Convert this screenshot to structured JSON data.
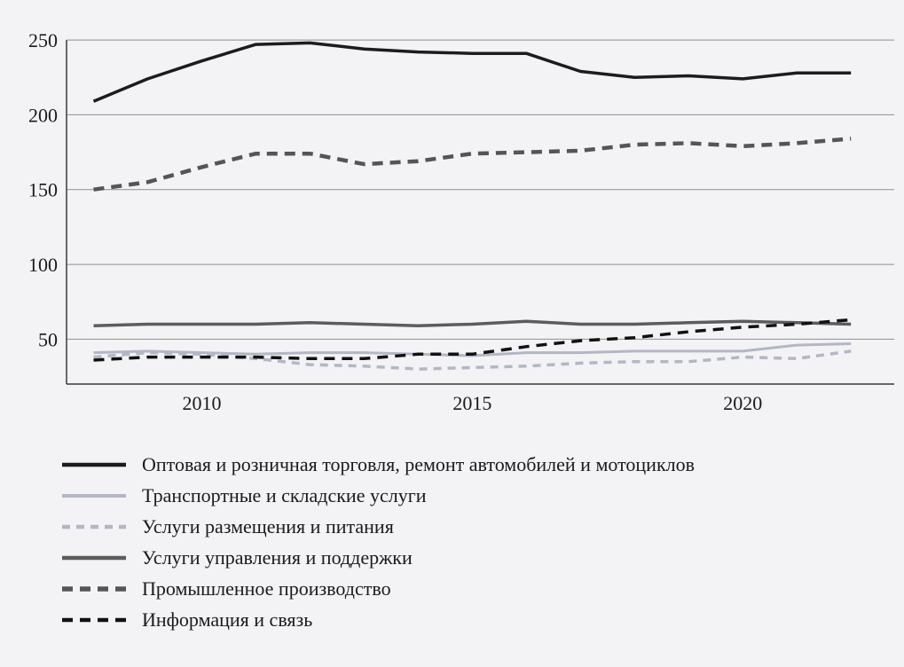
{
  "page": {
    "background_color": "#f3f3f5",
    "text_color": "#1a1a1a"
  },
  "chart_data": {
    "type": "line",
    "title": "",
    "xlabel": "",
    "ylabel": "",
    "x": [
      2008,
      2009,
      2010,
      2011,
      2012,
      2013,
      2014,
      2015,
      2016,
      2017,
      2018,
      2019,
      2020,
      2021,
      2022
    ],
    "xticks": [
      2010,
      2015,
      2020
    ],
    "yticks": [
      50,
      100,
      150,
      200,
      250
    ],
    "xlim": [
      2007.5,
      2022.8
    ],
    "ylim": [
      20,
      253
    ],
    "grid": "horizontal",
    "legend_position": "bottom-left",
    "series": [
      {
        "name": "Оптовая и розничная торговля, ремонт автомобилей и мотоциклов",
        "color": "#1c1c1c",
        "dash": null,
        "width": 3.5,
        "values": [
          209,
          224,
          236,
          247,
          248,
          244,
          242,
          241,
          241,
          229,
          225,
          226,
          224,
          228,
          228
        ]
      },
      {
        "name": "Транспортные и складские услуги",
        "color": "#b3b7c4",
        "dash": null,
        "width": 3,
        "values": [
          41,
          42,
          41,
          40,
          41,
          41,
          40,
          39,
          41,
          41,
          42,
          42,
          42,
          46,
          47
        ]
      },
      {
        "name": "Услуги размещения и питания",
        "color": "#b3b7c4",
        "dash": "9,7",
        "width": 3.5,
        "values": [
          38,
          41,
          40,
          37,
          33,
          32,
          30,
          31,
          32,
          34,
          35,
          35,
          38,
          37,
          42
        ]
      },
      {
        "name": "Услуги управления и поддержки",
        "color": "#5c5c5c",
        "dash": null,
        "width": 3.5,
        "values": [
          59,
          60,
          60,
          60,
          61,
          60,
          59,
          60,
          62,
          60,
          60,
          61,
          62,
          61,
          60
        ]
      },
      {
        "name": "Промышленное производство",
        "color": "#555555",
        "dash": "12,8",
        "width": 4.5,
        "values": [
          150,
          155,
          165,
          174,
          174,
          167,
          169,
          174,
          175,
          176,
          180,
          181,
          179,
          181,
          184
        ]
      },
      {
        "name": "Информация и связь",
        "color": "#111111",
        "dash": "12,8",
        "width": 3.5,
        "values": [
          36,
          38,
          38,
          38,
          37,
          37,
          40,
          40,
          45,
          49,
          51,
          55,
          58,
          60,
          63
        ]
      }
    ]
  }
}
